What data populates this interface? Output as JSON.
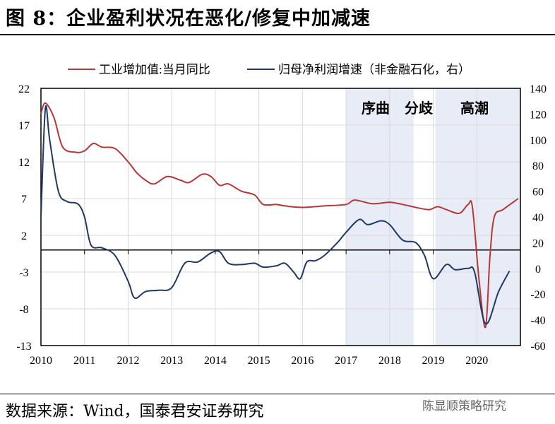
{
  "title": "图 8：企业盈利状况在恶化/修复中加减速",
  "source": "数据来源：Wind，国泰君安证券研究",
  "watermark": "陈显顺策略研究",
  "chart_data": {
    "type": "line",
    "legend_position": "top",
    "grid": true,
    "x_ticks": [
      "2010",
      "2011",
      "2012",
      "2013",
      "2014",
      "2015",
      "2016",
      "2017",
      "2018",
      "2019",
      "2020"
    ],
    "xlim": [
      2010,
      2021
    ],
    "y_left": {
      "lim": [
        -13,
        22
      ],
      "ticks": [
        22,
        17,
        12,
        7,
        2,
        -3,
        -8,
        -13
      ]
    },
    "y_right": {
      "lim": [
        -60,
        140
      ],
      "ticks": [
        140,
        120,
        100,
        80,
        60,
        40,
        20,
        0,
        -20,
        -40,
        -60
      ]
    },
    "shaded_periods": [
      [
        2017,
        2018.55
      ],
      [
        2019.05,
        2021
      ]
    ],
    "annotations": [
      "序曲",
      "分歧",
      "高潮"
    ],
    "colors": {
      "left": "#b5373a",
      "right": "#1f3864",
      "shade": "#e8ecf7"
    },
    "series": [
      {
        "name": "工业增加值:当月同比",
        "axis": "left",
        "x": [
          2010.0,
          2010.1,
          2010.3,
          2010.5,
          2010.8,
          2011.0,
          2011.2,
          2011.4,
          2011.7,
          2012.0,
          2012.2,
          2012.4,
          2012.6,
          2012.9,
          2013.2,
          2013.4,
          2013.7,
          2013.9,
          2014.1,
          2014.3,
          2014.6,
          2014.9,
          2015.1,
          2015.4,
          2015.6,
          2016.0,
          2016.5,
          2017.0,
          2017.2,
          2017.6,
          2018.0,
          2018.3,
          2018.6,
          2018.9,
          2019.1,
          2019.3,
          2019.6,
          2019.8,
          2019.9,
          2020.05,
          2020.2,
          2020.3,
          2020.4,
          2020.6,
          2020.95
        ],
        "y": [
          18.5,
          20,
          18,
          14,
          13.3,
          13.5,
          14.5,
          14,
          13.8,
          12,
          10.5,
          9.5,
          9,
          10,
          9.5,
          9.2,
          10.3,
          10,
          8.8,
          9,
          8,
          7.5,
          6.2,
          6.2,
          6,
          5.8,
          6,
          6.2,
          6.8,
          6.3,
          6.5,
          6.2,
          5.8,
          5.5,
          5.9,
          5.5,
          5,
          6.2,
          5.8,
          -4,
          -10.5,
          -1,
          4.5,
          5.5,
          7
        ]
      },
      {
        "name": "归母净利润增速（非金融石化，右）",
        "axis": "right",
        "x": [
          2010.0,
          2010.1,
          2010.2,
          2010.4,
          2010.6,
          2010.85,
          2011.0,
          2011.15,
          2011.4,
          2011.7,
          2012.0,
          2012.15,
          2012.4,
          2012.7,
          2013.0,
          2013.3,
          2013.6,
          2013.9,
          2014.1,
          2014.3,
          2014.6,
          2014.9,
          2015.1,
          2015.4,
          2015.6,
          2015.8,
          2015.95,
          2016.1,
          2016.3,
          2016.5,
          2016.8,
          2017.0,
          2017.3,
          2017.5,
          2017.8,
          2018.0,
          2018.3,
          2018.6,
          2018.8,
          2019.0,
          2019.3,
          2019.5,
          2019.8,
          2019.95,
          2020.2,
          2020.5,
          2020.75
        ],
        "y": [
          40,
          124,
          100,
          60,
          52,
          50,
          40,
          18,
          16,
          10,
          -10,
          -23,
          -18,
          -17,
          -15,
          4,
          5,
          12,
          13,
          4,
          3,
          4,
          1,
          2,
          4,
          -3,
          -8,
          5,
          6,
          10,
          20,
          28,
          38,
          34,
          37,
          34,
          22,
          20,
          10,
          -8,
          3,
          -1,
          0,
          -3,
          -43,
          -18,
          -2
        ]
      }
    ]
  }
}
